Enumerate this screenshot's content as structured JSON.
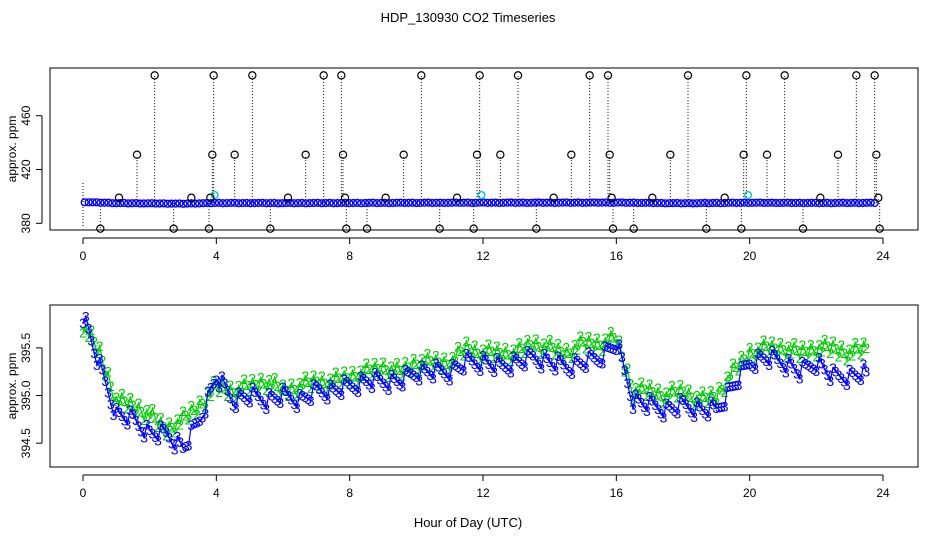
{
  "figure_title": "HDP_130930  CO2 Timeseries",
  "xlabel": "Hour of Day (UTC)",
  "colors": {
    "series1": "#0000ff",
    "series2": "#00cc00",
    "marker_top": "#000000",
    "highlight": "#00c8c8"
  },
  "chart_data": [
    {
      "type": "scatter",
      "ylabel": "approx. ppm",
      "xlim": [
        0,
        24
      ],
      "ylim": [
        378,
        491
      ],
      "xticks": [
        0,
        4,
        8,
        12,
        16,
        20,
        24
      ],
      "yticks": [
        380,
        420,
        460
      ],
      "baseline": 395,
      "outlier_levels": [
        376,
        399,
        431,
        490
      ],
      "markers": [
        {
          "x": 0.52,
          "y": 376
        },
        {
          "x": 1.08,
          "y": 399
        },
        {
          "x": 1.62,
          "y": 431
        },
        {
          "x": 2.15,
          "y": 490
        },
        {
          "x": 2.72,
          "y": 376
        },
        {
          "x": 3.25,
          "y": 399
        },
        {
          "x": 3.78,
          "y": 376
        },
        {
          "x": 3.82,
          "y": 399
        },
        {
          "x": 3.88,
          "y": 431
        },
        {
          "x": 3.92,
          "y": 490
        },
        {
          "x": 4.55,
          "y": 431
        },
        {
          "x": 5.08,
          "y": 490
        },
        {
          "x": 5.62,
          "y": 376
        },
        {
          "x": 6.15,
          "y": 399
        },
        {
          "x": 6.68,
          "y": 431
        },
        {
          "x": 7.22,
          "y": 490
        },
        {
          "x": 7.75,
          "y": 490
        },
        {
          "x": 7.8,
          "y": 431
        },
        {
          "x": 7.86,
          "y": 399
        },
        {
          "x": 7.9,
          "y": 376
        },
        {
          "x": 8.52,
          "y": 376
        },
        {
          "x": 9.08,
          "y": 399
        },
        {
          "x": 9.62,
          "y": 431
        },
        {
          "x": 10.15,
          "y": 490
        },
        {
          "x": 10.7,
          "y": 376
        },
        {
          "x": 11.22,
          "y": 399
        },
        {
          "x": 11.72,
          "y": 376
        },
        {
          "x": 11.82,
          "y": 431
        },
        {
          "x": 11.9,
          "y": 490
        },
        {
          "x": 12.52,
          "y": 431
        },
        {
          "x": 13.05,
          "y": 490
        },
        {
          "x": 13.6,
          "y": 376
        },
        {
          "x": 14.12,
          "y": 399
        },
        {
          "x": 14.65,
          "y": 431
        },
        {
          "x": 15.2,
          "y": 490
        },
        {
          "x": 15.75,
          "y": 490
        },
        {
          "x": 15.8,
          "y": 431
        },
        {
          "x": 15.86,
          "y": 399
        },
        {
          "x": 15.9,
          "y": 376
        },
        {
          "x": 16.52,
          "y": 376
        },
        {
          "x": 17.08,
          "y": 399
        },
        {
          "x": 17.62,
          "y": 431
        },
        {
          "x": 18.15,
          "y": 490
        },
        {
          "x": 18.7,
          "y": 376
        },
        {
          "x": 19.25,
          "y": 399
        },
        {
          "x": 19.75,
          "y": 376
        },
        {
          "x": 19.82,
          "y": 431
        },
        {
          "x": 19.9,
          "y": 490
        },
        {
          "x": 20.52,
          "y": 431
        },
        {
          "x": 21.05,
          "y": 490
        },
        {
          "x": 21.6,
          "y": 376
        },
        {
          "x": 22.12,
          "y": 399
        },
        {
          "x": 22.65,
          "y": 431
        },
        {
          "x": 23.2,
          "y": 490
        },
        {
          "x": 23.75,
          "y": 490
        },
        {
          "x": 23.8,
          "y": 431
        },
        {
          "x": 23.86,
          "y": 399
        },
        {
          "x": 23.9,
          "y": 376
        }
      ],
      "highlight_points": [
        {
          "x": 3.95,
          "y": 401
        },
        {
          "x": 11.95,
          "y": 401
        },
        {
          "x": 19.95,
          "y": 401
        }
      ],
      "series_trend": [
        {
          "x": 0,
          "y": 395.8
        },
        {
          "x": 1,
          "y": 395.0
        },
        {
          "x": 2,
          "y": 394.8
        },
        {
          "x": 3,
          "y": 394.6
        },
        {
          "x": 4,
          "y": 395.1
        },
        {
          "x": 6,
          "y": 395.0
        },
        {
          "x": 8,
          "y": 395.1
        },
        {
          "x": 10,
          "y": 395.2
        },
        {
          "x": 12,
          "y": 395.3
        },
        {
          "x": 14,
          "y": 395.3
        },
        {
          "x": 16,
          "y": 395.4
        },
        {
          "x": 18,
          "y": 394.9
        },
        {
          "x": 20,
          "y": 395.3
        },
        {
          "x": 22,
          "y": 395.1
        },
        {
          "x": 24,
          "y": 395.2
        }
      ]
    },
    {
      "type": "line",
      "ylabel": "approx. ppm",
      "xlim": [
        0,
        24
      ],
      "ylim": [
        394.25,
        395.95
      ],
      "xticks": [
        0,
        4,
        8,
        12,
        16,
        20,
        24
      ],
      "yticks": [
        394.5,
        395.0,
        395.5
      ],
      "ytick_labels": [
        "394.5",
        "395.0",
        "395.5"
      ],
      "series": [
        {
          "marker": "2",
          "color": "#00cc00",
          "x": [
            0.0,
            0.5,
            1.0,
            1.5,
            2.0,
            2.5,
            3.0,
            3.5,
            4.0,
            4.5,
            5.0,
            5.5,
            6.0,
            6.5,
            7.0,
            7.5,
            8.0,
            8.5,
            9.0,
            9.5,
            10.0,
            10.5,
            11.0,
            11.5,
            12.0,
            12.5,
            13.0,
            13.5,
            14.0,
            14.5,
            15.0,
            15.5,
            16.0,
            16.5,
            17.0,
            17.5,
            18.0,
            18.5,
            19.0,
            19.5,
            20.0,
            20.5,
            21.0,
            21.5,
            22.0,
            22.5,
            23.0,
            23.5
          ],
          "y": [
            395.75,
            395.45,
            394.95,
            394.9,
            394.8,
            394.65,
            394.75,
            394.9,
            395.1,
            395.05,
            395.1,
            395.15,
            395.05,
            395.1,
            395.15,
            395.15,
            395.2,
            395.25,
            395.3,
            395.25,
            395.35,
            395.35,
            395.35,
            395.5,
            395.45,
            395.45,
            395.45,
            395.55,
            395.5,
            395.45,
            395.55,
            395.55,
            395.6,
            395.05,
            395.05,
            395.0,
            395.05,
            394.95,
            395.0,
            395.25,
            395.45,
            395.5,
            395.5,
            395.45,
            395.5,
            395.5,
            395.45,
            395.5
          ]
        },
        {
          "marker": "3",
          "color": "#0000ff",
          "x": [
            0.0,
            0.5,
            1.0,
            1.5,
            2.0,
            2.5,
            3.0,
            3.5,
            4.0,
            4.5,
            5.0,
            5.5,
            6.0,
            6.5,
            7.0,
            7.5,
            8.0,
            8.5,
            9.0,
            9.5,
            10.0,
            10.5,
            11.0,
            11.5,
            12.0,
            12.5,
            13.0,
            13.5,
            14.0,
            14.5,
            15.0,
            15.5,
            16.0,
            16.5,
            17.0,
            17.5,
            18.0,
            18.5,
            19.0,
            19.5,
            20.0,
            20.5,
            21.0,
            21.5,
            22.0,
            22.5,
            23.0,
            23.5
          ],
          "y": [
            395.85,
            395.3,
            394.8,
            394.75,
            394.6,
            394.6,
            394.45,
            394.75,
            395.2,
            394.95,
            395.0,
            394.95,
            395.0,
            394.95,
            395.05,
            395.05,
            395.1,
            395.15,
            395.15,
            395.15,
            395.25,
            395.25,
            395.25,
            395.35,
            395.35,
            395.3,
            395.35,
            395.4,
            395.35,
            395.3,
            395.35,
            395.4,
            395.55,
            394.95,
            394.9,
            394.85,
            394.9,
            394.85,
            394.85,
            395.1,
            395.35,
            395.4,
            395.35,
            395.25,
            395.35,
            395.2,
            395.2,
            395.25
          ]
        }
      ]
    }
  ]
}
